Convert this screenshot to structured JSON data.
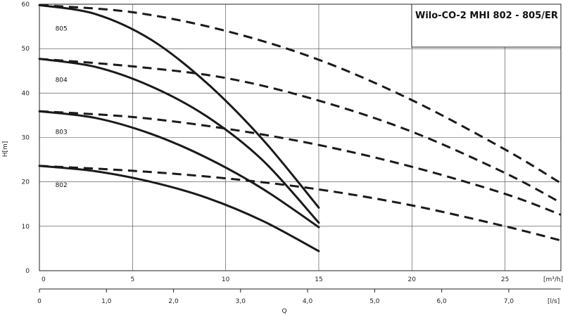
{
  "chart_data": {
    "type": "line",
    "title": "Wilo-CO-2 MHI 802 - 805/ER",
    "ylabel": "H[m]",
    "xlabel": "Q",
    "x_unit_top": "[m³/h]",
    "x_unit_bottom": "[l/s]",
    "xlim": [
      0,
      28
    ],
    "ylim": [
      0,
      60
    ],
    "y_ticks": [
      "0",
      "10",
      "20",
      "30",
      "40",
      "50",
      "60"
    ],
    "x_ticks_m3h": [
      {
        "v": 0,
        "label": "0"
      },
      {
        "v": 5,
        "label": "5"
      },
      {
        "v": 10,
        "label": "10"
      },
      {
        "v": 15,
        "label": "15"
      },
      {
        "v": 20,
        "label": "20"
      },
      {
        "v": 25,
        "label": "25"
      }
    ],
    "x_ticks_ls": [
      {
        "v": 0,
        "label": "0"
      },
      {
        "v": 1.0,
        "label": "1,0"
      },
      {
        "v": 2.0,
        "label": "2,0"
      },
      {
        "v": 3.0,
        "label": "3,0"
      },
      {
        "v": 4.0,
        "label": "4,0"
      },
      {
        "v": 5.0,
        "label": "5,0"
      },
      {
        "v": 6.0,
        "label": "6,0"
      },
      {
        "v": 7.0,
        "label": "7,0"
      }
    ],
    "series": [
      {
        "name": "802",
        "style": "solid",
        "x": [
          0,
          3,
          6,
          9,
          12,
          15
        ],
        "y": [
          23.6,
          22.4,
          20.0,
          16.4,
          11.2,
          4.4
        ]
      },
      {
        "name": "803",
        "style": "solid",
        "x": [
          0,
          3,
          6,
          9,
          12,
          15
        ],
        "y": [
          35.9,
          34.4,
          30.8,
          25.4,
          18.4,
          9.8
        ]
      },
      {
        "name": "804",
        "style": "solid",
        "x": [
          0,
          3,
          6,
          9,
          12,
          15
        ],
        "y": [
          47.7,
          45.9,
          41.5,
          34.7,
          24.8,
          10.8
        ]
      },
      {
        "name": "805",
        "style": "solid",
        "x": [
          0,
          3,
          6,
          9,
          12,
          15
        ],
        "y": [
          59.8,
          57.8,
          52.0,
          42.2,
          29.5,
          14.2
        ]
      },
      {
        "name": "802",
        "style": "dashed",
        "x": [
          0,
          5,
          10,
          15,
          20,
          25,
          28
        ],
        "y": [
          23.6,
          22.5,
          20.8,
          18.3,
          14.7,
          10.0,
          6.8
        ]
      },
      {
        "name": "803",
        "style": "dashed",
        "x": [
          0,
          5,
          10,
          15,
          20,
          25,
          28
        ],
        "y": [
          35.9,
          34.6,
          32.0,
          28.3,
          23.4,
          17.3,
          12.6
        ]
      },
      {
        "name": "804",
        "style": "dashed",
        "x": [
          0,
          5,
          10,
          15,
          20,
          25,
          28
        ],
        "y": [
          47.7,
          46.0,
          43.4,
          38.3,
          31.3,
          22.0,
          15.3
        ]
      },
      {
        "name": "805",
        "style": "dashed",
        "x": [
          0,
          5,
          10,
          15,
          20,
          25,
          28
        ],
        "y": [
          59.8,
          58.2,
          54.0,
          47.5,
          38.4,
          27.3,
          19.7
        ]
      }
    ],
    "curve_labels": [
      {
        "text": "805",
        "x": 0.4,
        "y": 54.5
      },
      {
        "text": "804",
        "x": 0.4,
        "y": 43.0
      },
      {
        "text": "803",
        "x": 0.4,
        "y": 31.3
      },
      {
        "text": "802",
        "x": 0.4,
        "y": 19.3
      }
    ],
    "grid": true
  }
}
